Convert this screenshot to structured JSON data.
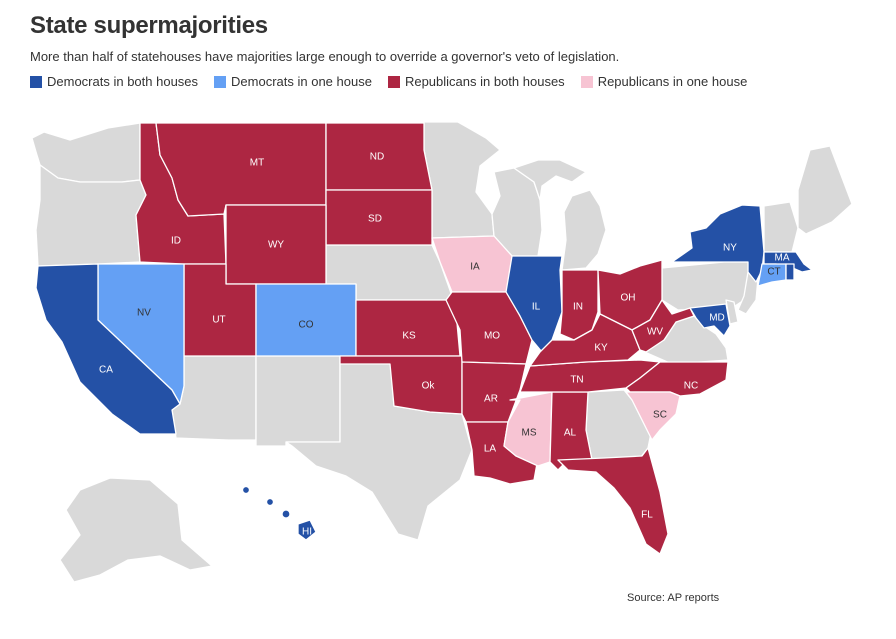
{
  "title": "State supermajorities",
  "subtitle": "More than half of statehouses have majorities large enough to override a governor's veto of legislation.",
  "colors": {
    "dem_both": "#2451a6",
    "dem_one": "#64a0f4",
    "rep_both": "#ad2642",
    "rep_one": "#f7c4d3",
    "none": "#d9d9d9",
    "border": "#ffffff"
  },
  "legend": [
    {
      "label": "Democrats in both houses",
      "color": "#2451a6"
    },
    {
      "label": "Democrats in one house",
      "color": "#64a0f4"
    },
    {
      "label": "Republicans in both houses",
      "color": "#ad2642"
    },
    {
      "label": "Republicans in one house",
      "color": "#f7c4d3"
    }
  ],
  "states": {
    "MT": "MT",
    "ND": "ND",
    "SD": "SD",
    "ID": "ID",
    "WY": "WY",
    "NV": "NV",
    "UT": "UT",
    "CO": "CO",
    "CA": "CA",
    "KS": "KS",
    "OK": "Ok",
    "IA": "IA",
    "MO": "MO",
    "AR": "AR",
    "LA": "LA",
    "MS": "MS",
    "AL": "AL",
    "TN": "TN",
    "IL": "IL",
    "IN": "IN",
    "OH": "OH",
    "KY": "KY",
    "WV": "WV",
    "NC": "NC",
    "SC": "SC",
    "FL": "FL",
    "NY": "NY",
    "MA": "MA",
    "CT": "CT",
    "MD": "MD",
    "HI": "HI"
  },
  "source": "Source: AP reports"
}
